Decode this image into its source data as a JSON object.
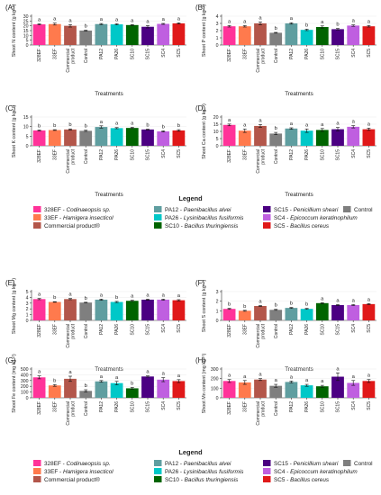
{
  "categories": [
    "328EF",
    "33EF",
    "Commercial product",
    "Control",
    "PA12",
    "PA26",
    "SC10",
    "SC15",
    "SC4",
    "SC5"
  ],
  "category_lines": [
    [
      "328EF"
    ],
    [
      "33EF"
    ],
    [
      "Commercial",
      "product"
    ],
    [
      "Control"
    ],
    [
      "PA12"
    ],
    [
      "PA26"
    ],
    [
      "SC10"
    ],
    [
      "SC15"
    ],
    [
      "SC4"
    ],
    [
      "SC5"
    ]
  ],
  "colors": [
    "#ff3399",
    "#ff7a4d",
    "#b3564a",
    "#7f7f7f",
    "#5f9ea0",
    "#00c8c8",
    "#006400",
    "#4b0082",
    "#bf5fe0",
    "#e01919"
  ],
  "xlabel": "Treatments",
  "legend": {
    "title": "Legend",
    "items": [
      {
        "code": "328EF - ",
        "species": "Codinaeopsis sp."
      },
      {
        "code": "33EF - ",
        "species": "Hamigera insecticol"
      },
      {
        "code": "Commercial product®",
        "species": ""
      },
      {
        "code": "PA12 - ",
        "species": "Paenibacillus alvei"
      },
      {
        "code": "PA26 - ",
        "species": "Lysinibacillus fusiformis"
      },
      {
        "code": "SC10 - ",
        "species": "Bacillus thuringiensis"
      },
      {
        "code": "SC15 - ",
        "species": "Penicillium sheari"
      },
      {
        "code": "SC4 - ",
        "species": "Epicoccum keratinophilum"
      },
      {
        "code": "SC5 - ",
        "species": "Bacillus cereus"
      },
      {
        "code": "Control",
        "species": ""
      }
    ]
  },
  "chart_data": [
    {
      "type": "bar",
      "panel": "(A)",
      "ylabel": "Shoot N content (g kg⁻¹)",
      "ylim": [
        0,
        30
      ],
      "yticks": [
        0,
        5,
        10,
        15,
        20,
        25,
        30
      ],
      "show_xlabel": true,
      "values": [
        21.5,
        21.8,
        20.0,
        15.0,
        21.8,
        21.5,
        20.8,
        19.0,
        22.0,
        22.5
      ],
      "errors": [
        0.5,
        1.0,
        1.3,
        0.4,
        0.6,
        0.6,
        0.5,
        1.2,
        0.5,
        0.6
      ],
      "letters": [
        "a",
        "a",
        "a",
        "b",
        "a",
        "a",
        "a",
        "a",
        "a",
        "a"
      ]
    },
    {
      "type": "bar",
      "panel": "(B)",
      "ylabel": "Shoot P content (g kg⁻¹)",
      "ylim": [
        0,
        4
      ],
      "yticks": [
        0,
        1,
        2,
        3,
        4
      ],
      "show_xlabel": true,
      "values": [
        2.6,
        2.6,
        3.0,
        1.7,
        3.0,
        2.1,
        2.5,
        2.2,
        2.7,
        2.6
      ],
      "errors": [
        0.1,
        0.1,
        0.2,
        0.05,
        0.1,
        0.1,
        0.15,
        0.1,
        0.1,
        0.1
      ],
      "letters": [
        "a",
        "a",
        "a",
        "b",
        "a",
        "b",
        "a",
        "b",
        "a",
        "a"
      ]
    },
    {
      "type": "bar",
      "panel": "(C)",
      "ylabel": "Shoot K content (g kg⁻¹)",
      "ylim": [
        0,
        15
      ],
      "yticks": [
        0,
        5,
        10,
        15
      ],
      "show_xlabel": true,
      "values": [
        8.0,
        8.2,
        8.5,
        7.8,
        9.8,
        9.2,
        9.3,
        8.5,
        7.5,
        8.0
      ],
      "errors": [
        0.2,
        0.2,
        0.3,
        0.3,
        0.6,
        0.3,
        0.3,
        0.2,
        0.3,
        0.4
      ],
      "letters": [
        "b",
        "b",
        "b",
        "b",
        "a",
        "a",
        "a",
        "b",
        "b",
        "b"
      ]
    },
    {
      "type": "bar",
      "panel": "(D)",
      "ylabel": "Shoot Ca content (g kg⁻¹)",
      "ylim": [
        0,
        20
      ],
      "yticks": [
        0,
        5,
        10,
        15,
        20
      ],
      "show_xlabel": true,
      "values": [
        14.5,
        10.5,
        13.8,
        8.5,
        12.0,
        10.5,
        11.0,
        11.5,
        13.2,
        11.5
      ],
      "errors": [
        0.6,
        1.2,
        1.0,
        0.8,
        0.5,
        1.2,
        1.0,
        1.2,
        0.8,
        0.8
      ],
      "letters": [
        "a",
        "a",
        "a",
        "b",
        "a",
        "a",
        "a",
        "a",
        "a",
        "a"
      ]
    },
    {
      "type": "bar",
      "panel": "(E)",
      "ylabel": "Shoot Mg content (g kg⁻¹)",
      "ylim": [
        0,
        5
      ],
      "yticks": [
        0,
        1,
        2,
        3,
        4,
        5
      ],
      "show_xlabel": true,
      "values": [
        3.7,
        3.2,
        3.7,
        3.1,
        3.6,
        3.2,
        3.4,
        3.6,
        3.6,
        3.5
      ],
      "errors": [
        0.1,
        0.05,
        0.1,
        0.05,
        0.1,
        0.1,
        0.1,
        0.1,
        0.1,
        0.1
      ],
      "letters": [
        "a",
        "b",
        "a",
        "b",
        "a",
        "b",
        "a",
        "a",
        "a",
        "a"
      ]
    },
    {
      "type": "bar",
      "panel": "(F)",
      "ylabel": "Shoot S content (g kg⁻¹)",
      "ylim": [
        0,
        3
      ],
      "yticks": [
        0,
        1,
        2,
        3
      ],
      "show_xlabel": true,
      "values": [
        1.2,
        1.0,
        1.5,
        1.1,
        1.3,
        1.2,
        1.8,
        1.6,
        1.6,
        1.7
      ],
      "errors": [
        0.05,
        0.05,
        0.05,
        0.05,
        0.05,
        0.05,
        0.05,
        0.05,
        0.05,
        0.05
      ],
      "letters": [
        "b",
        "b",
        "a",
        "b",
        "b",
        "b",
        "a",
        "a",
        "a",
        "a"
      ]
    },
    {
      "type": "bar",
      "panel": "(G)",
      "ylabel": "Shoot Fe content (mg kg⁻¹)",
      "ylim": [
        0,
        500
      ],
      "yticks": [
        0,
        100,
        200,
        300,
        400,
        500
      ],
      "show_xlabel": false,
      "values": [
        355,
        215,
        330,
        120,
        285,
        255,
        165,
        370,
        315,
        290
      ],
      "errors": [
        25,
        15,
        45,
        20,
        15,
        30,
        15,
        10,
        35,
        25
      ],
      "letters": [
        "a",
        "b",
        "a",
        "b",
        "a",
        "a",
        "b",
        "a",
        "a",
        "a"
      ]
    },
    {
      "type": "bar",
      "panel": "(H)",
      "ylabel": "Shoot Mn content (mg kg⁻¹)",
      "ylim": [
        0,
        300
      ],
      "yticks": [
        0,
        100,
        200,
        300
      ],
      "show_xlabel": false,
      "values": [
        175,
        160,
        190,
        125,
        165,
        130,
        120,
        220,
        155,
        175
      ],
      "errors": [
        15,
        20,
        10,
        15,
        10,
        10,
        10,
        40,
        25,
        15
      ],
      "letters": [
        "a",
        "a",
        "a",
        "a",
        "a",
        "a",
        "a",
        "a",
        "a",
        "a"
      ]
    }
  ]
}
